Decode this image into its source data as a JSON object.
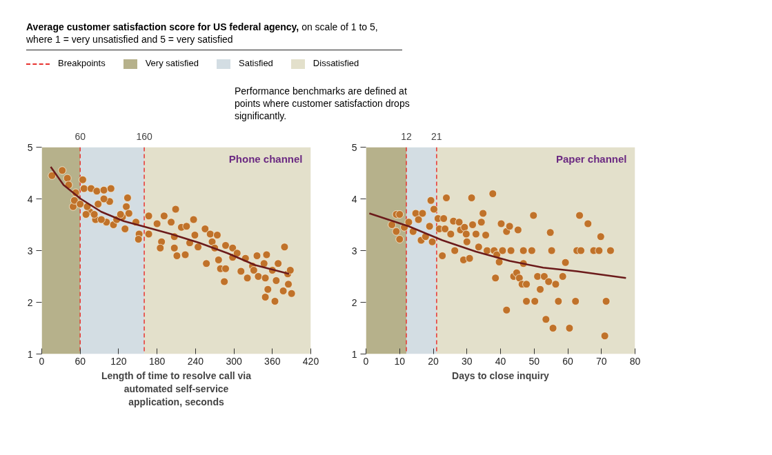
{
  "chart_data": [
    {
      "type": "scatter",
      "title": "Phone channel",
      "xlabel": "Length of time to resolve call via automated self-service application, seconds",
      "annotations": [
        "Average customer satisfaction score for US federal agency, on scale of 1 to 5, where 1 = very unsatisfied and 5 = very satisfied",
        "Performance benchmarks are defined at points where customer satisfaction drops significantly."
      ],
      "legend": "top",
      "legend_title": "Breakpoints",
      "xlim": [
        0,
        420
      ],
      "xticks": [
        0,
        60,
        120,
        180,
        240,
        300,
        360,
        420
      ],
      "ylim": [
        1,
        5
      ],
      "yticks": [
        1,
        2,
        3,
        4,
        5
      ],
      "bands": [
        {
          "axis": "x",
          "from": 0,
          "to": 60,
          "label": "Very satisfied",
          "color": "#b6b18b"
        },
        {
          "axis": "x",
          "from": 60,
          "to": 160,
          "label": "Satisfied",
          "color": "#d3dde3"
        },
        {
          "axis": "x",
          "from": 160,
          "to": 420,
          "label": "Dissatisfied",
          "color": "#e3e0cb"
        }
      ],
      "ref_lines": [
        {
          "axis": "x",
          "value": 60,
          "label": "60",
          "color": "#e8322e",
          "line_style": "dashed"
        },
        {
          "axis": "x",
          "value": 160,
          "label": "160",
          "color": "#e8322e",
          "line_style": "dashed"
        }
      ],
      "series": [
        {
          "marker": "circle",
          "color": "#c0722a",
          "x": [
            16,
            32,
            40,
            49,
            42,
            53,
            64,
            66,
            77,
            86,
            97,
            108,
            106,
            97,
            88,
            75,
            69,
            84,
            101,
            112,
            130,
            134,
            132,
            136,
            126,
            147,
            152,
            151,
            167,
            167,
            180,
            187,
            191,
            185,
            202,
            209,
            207,
            207,
            211,
            218,
            226,
            224,
            231,
            237,
            239,
            244,
            255,
            263,
            266,
            257,
            274,
            270,
            276,
            279,
            287,
            285,
            287,
            298,
            298,
            305,
            311,
            318,
            321,
            329,
            331,
            336,
            338,
            351,
            347,
            349,
            353,
            349,
            364,
            360,
            366,
            369,
            377,
            379,
            384,
            388,
            385,
            390,
            51,
            60,
            71,
            82,
            93,
            117,
            123
          ],
          "values": [
            4.45,
            4.55,
            4.4,
            3.85,
            4.27,
            4.12,
            4.37,
            4.2,
            4.2,
            4.15,
            4.17,
            4.2,
            3.95,
            4.0,
            3.9,
            3.75,
            3.7,
            3.6,
            3.55,
            3.5,
            3.42,
            4.02,
            3.85,
            3.72,
            3.65,
            3.55,
            3.32,
            3.22,
            3.67,
            3.32,
            3.52,
            3.17,
            3.67,
            3.05,
            3.55,
            3.8,
            3.27,
            3.05,
            2.9,
            3.45,
            3.47,
            2.92,
            3.15,
            3.6,
            3.3,
            3.07,
            3.42,
            3.32,
            3.17,
            2.75,
            3.3,
            3.05,
            2.82,
            2.65,
            2.65,
            2.4,
            3.1,
            3.05,
            2.87,
            2.95,
            2.6,
            2.85,
            2.47,
            2.7,
            2.62,
            2.9,
            2.5,
            2.92,
            2.75,
            2.47,
            2.25,
            2.1,
            2.02,
            2.62,
            2.42,
            2.75,
            2.22,
            3.07,
            2.55,
            2.62,
            2.35,
            2.17,
            3.97,
            3.9,
            3.85,
            3.7,
            3.6,
            3.6,
            3.7
          ]
        },
        {
          "type": "line",
          "color": "#6b1a1a",
          "x": [
            14,
            34,
            61,
            93,
            128,
            158,
            202,
            246,
            290,
            333,
            386
          ],
          "values": [
            4.62,
            4.27,
            4.0,
            3.75,
            3.57,
            3.47,
            3.32,
            3.15,
            2.95,
            2.72,
            2.55
          ]
        }
      ]
    },
    {
      "type": "scatter",
      "title": "Paper channel",
      "xlabel": "Days to close inquiry",
      "xlim": [
        0,
        80
      ],
      "xticks": [
        0,
        10,
        20,
        30,
        40,
        50,
        60,
        70,
        80
      ],
      "ylim": [
        1,
        5
      ],
      "yticks": [
        1,
        2,
        3,
        4,
        5
      ],
      "bands": [
        {
          "axis": "x",
          "from": 0,
          "to": 12,
          "color": "#b6b18b"
        },
        {
          "axis": "x",
          "from": 12,
          "to": 21,
          "color": "#d3dde3"
        },
        {
          "axis": "x",
          "from": 21,
          "to": 80,
          "color": "#e3e0cb"
        }
      ],
      "ref_lines": [
        {
          "axis": "x",
          "value": 12,
          "label": "12",
          "color": "#e8322e",
          "line_style": "dashed"
        },
        {
          "axis": "x",
          "value": 21,
          "label": "21",
          "color": "#e8322e",
          "line_style": "dashed"
        }
      ],
      "series": [
        {
          "marker": "circle",
          "color": "#c0722a",
          "x": [
            7.7,
            9,
            10,
            9,
            10,
            11.4,
            12.7,
            14,
            14.8,
            15.6,
            16.8,
            16.4,
            17.7,
            18.9,
            19.3,
            19.7,
            20.2,
            21.4,
            21.8,
            22.7,
            23.1,
            23.9,
            23.5,
            25.2,
            26,
            26.4,
            27.7,
            28.1,
            29,
            29.3,
            29.8,
            30,
            30.8,
            31.4,
            31.7,
            32.7,
            33.5,
            34.3,
            34.8,
            35.6,
            36,
            37.7,
            38.1,
            38.5,
            38.9,
            39.6,
            40.2,
            40.6,
            41.8,
            41.8,
            42.7,
            43.1,
            43.9,
            44.8,
            45.2,
            45.6,
            46.4,
            46.8,
            46.8,
            47.7,
            47.7,
            49.3,
            49.8,
            50.2,
            51,
            51.8,
            53,
            53.5,
            54.3,
            54.8,
            55.2,
            55.6,
            56.4,
            57.2,
            58.5,
            59.3,
            60.5,
            62.3,
            62.7,
            63.9,
            63.5,
            66,
            67.7,
            69.3,
            69.8,
            71.4,
            71,
            72.7
          ],
          "values": [
            3.5,
            3.7,
            3.7,
            3.37,
            3.22,
            3.45,
            3.55,
            3.37,
            3.72,
            3.6,
            3.72,
            3.2,
            3.27,
            3.47,
            3.97,
            3.17,
            3.8,
            3.62,
            3.42,
            2.9,
            3.62,
            4.02,
            3.42,
            3.32,
            3.57,
            3.0,
            3.55,
            3.4,
            2.82,
            3.45,
            3.32,
            3.17,
            2.85,
            4.02,
            3.5,
            3.32,
            3.07,
            3.55,
            3.72,
            3.3,
            3.0,
            4.1,
            3.0,
            2.47,
            2.92,
            2.78,
            3.52,
            3.0,
            1.85,
            3.37,
            3.47,
            3.0,
            2.5,
            2.57,
            3.4,
            2.47,
            2.35,
            3.0,
            2.75,
            2.02,
            2.35,
            3.0,
            3.68,
            2.02,
            2.5,
            2.25,
            2.5,
            1.67,
            2.4,
            3.35,
            3.0,
            1.5,
            2.35,
            2.02,
            2.5,
            2.77,
            1.5,
            2.02,
            3.0,
            3.0,
            3.68,
            3.52,
            3.0,
            3.0,
            3.27,
            2.02,
            1.35,
            3.0
          ]
        },
        {
          "type": "line",
          "color": "#6b1a1a",
          "x": [
            1,
            12.7,
            22.7,
            32.7,
            42.7,
            52.7,
            62.7,
            77.3
          ],
          "values": [
            3.72,
            3.47,
            3.2,
            2.98,
            2.8,
            2.67,
            2.6,
            2.47
          ]
        }
      ]
    }
  ]
}
